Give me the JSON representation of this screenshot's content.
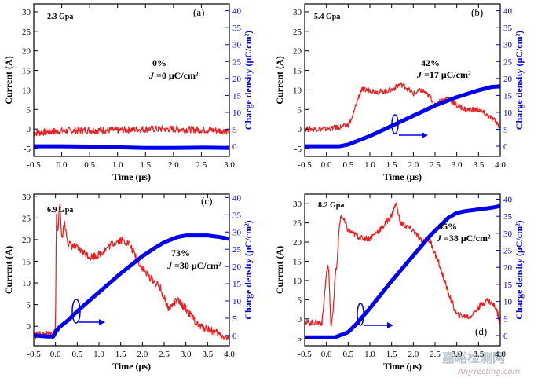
{
  "watermark": {
    "cn": "嘉峪检测网",
    "en": "AnyTesting.com"
  },
  "chart_data": [
    {
      "type": "line",
      "panel_label": "(a)",
      "pressure": "2.3 Gpa",
      "percent": "0%",
      "j_value": "=0 μC/cm²",
      "xlabel": "Time (μs)",
      "ylabel_left": "Current (A)",
      "ylabel_right": "Charge density (μC/cm²)",
      "xlim": [
        -0.5,
        3.0
      ],
      "xticks": [
        -0.5,
        0.0,
        0.5,
        1.0,
        1.5,
        2.0,
        2.5,
        3.0
      ],
      "ylim_left": [
        -7,
        32
      ],
      "yticks_left": [
        -5,
        0,
        5,
        10,
        15,
        20,
        25,
        30
      ],
      "ylim_right": [
        -3,
        42
      ],
      "yticks_right": [
        0,
        5,
        10,
        15,
        20,
        25,
        30,
        35,
        40
      ],
      "series": [
        {
          "axis": "left",
          "color": "#ee1c1c",
          "noise": 0.9,
          "x": [
            -0.5,
            0.0,
            0.5,
            1.0,
            1.5,
            2.0,
            2.5,
            3.0
          ],
          "y": [
            -1,
            -0.5,
            -0.3,
            -0.3,
            0,
            0,
            -0.2,
            -0.5
          ]
        },
        {
          "axis": "right",
          "color": "#0000ee",
          "x": [
            -0.5,
            0.0,
            0.5,
            1.0,
            1.5,
            2.0,
            2.5,
            3.0
          ],
          "y": [
            0,
            0,
            -0.1,
            -0.3,
            -0.5,
            -0.5,
            -0.4,
            -0.5
          ]
        }
      ]
    },
    {
      "type": "line",
      "panel_label": "(b)",
      "pressure": "5.4 Gpa",
      "percent": "42%",
      "j_value": "=17 μC/cm²",
      "xlabel": "Time (μs)",
      "ylabel_left": "Current (A)",
      "ylabel_right": "Charge density (μC/cm²)",
      "xlim": [
        -0.5,
        4.0
      ],
      "xticks": [
        -0.5,
        0.0,
        0.5,
        1.0,
        1.5,
        2.0,
        2.5,
        3.0,
        3.5,
        4.0
      ],
      "ylim_left": [
        -7,
        32
      ],
      "yticks_left": [
        -5,
        0,
        5,
        10,
        15,
        20,
        25,
        30
      ],
      "ylim_right": [
        -3,
        42
      ],
      "yticks_right": [
        0,
        5,
        10,
        15,
        20,
        25,
        30,
        35,
        40
      ],
      "series": [
        {
          "axis": "left",
          "color": "#ee1c1c",
          "noise": 0.7,
          "x": [
            -0.5,
            0.0,
            0.3,
            0.5,
            0.6,
            0.7,
            0.8,
            1.0,
            1.2,
            1.5,
            1.7,
            1.8,
            2.0,
            2.2,
            2.4,
            2.5,
            2.6,
            2.8,
            3.0,
            3.2,
            3.5,
            3.7,
            3.9,
            4.0
          ],
          "y": [
            0,
            0,
            0.5,
            1,
            3,
            7,
            10,
            10,
            9.5,
            10,
            11.5,
            11,
            9,
            10,
            8,
            6,
            7,
            8,
            6,
            5,
            5,
            3.5,
            2,
            0.5
          ]
        },
        {
          "axis": "right",
          "color": "#0000ee",
          "x": [
            -0.5,
            0.0,
            0.3,
            0.5,
            0.7,
            1.0,
            1.5,
            2.0,
            2.5,
            3.0,
            3.5,
            3.8,
            4.0
          ],
          "y": [
            0,
            0,
            0,
            0.5,
            1.5,
            3,
            6,
            9,
            12,
            14.5,
            16.5,
            17.5,
            17.7
          ]
        }
      ]
    },
    {
      "type": "line",
      "panel_label": "(c)",
      "pressure": "6.9 Gpa",
      "percent": "73%",
      "j_value": "=30 μC/cm²",
      "xlabel": "Time (μs)",
      "ylabel_left": "Current (A)",
      "ylabel_right": "Charge density (μC/cm²)",
      "xlim": [
        -0.5,
        4.0
      ],
      "xticks": [
        -0.5,
        0.0,
        0.5,
        1.0,
        1.5,
        2.0,
        2.5,
        3.0,
        3.5,
        4.0
      ],
      "ylim_left": [
        -4.5,
        30.5
      ],
      "yticks_left": [
        0,
        5,
        10,
        15,
        20,
        25,
        30
      ],
      "ylim_right": [
        -3,
        41
      ],
      "yticks_right": [
        0,
        5,
        10,
        15,
        20,
        25,
        30,
        35,
        40
      ],
      "series": [
        {
          "axis": "left",
          "color": "#ee1c1c",
          "noise": 0.9,
          "x": [
            -0.5,
            -0.05,
            0.0,
            0.02,
            0.05,
            0.1,
            0.15,
            0.2,
            0.3,
            0.5,
            0.8,
            1.0,
            1.3,
            1.5,
            1.7,
            1.9,
            2.1,
            2.4,
            2.6,
            2.8,
            3.0,
            3.3,
            3.5,
            3.8,
            4.0
          ],
          "y": [
            -2,
            -2,
            0,
            27,
            22,
            28,
            20,
            24,
            19,
            18,
            16,
            16.5,
            19,
            20,
            19,
            15,
            12,
            9,
            4,
            6,
            4,
            0,
            -0.5,
            -2,
            -3
          ]
        },
        {
          "axis": "right",
          "color": "#0000ee",
          "x": [
            -0.5,
            -0.2,
            -0.05,
            0.0,
            0.1,
            0.3,
            0.5,
            1.0,
            1.5,
            2.0,
            2.3,
            2.5,
            2.8,
            3.0,
            3.2,
            3.5,
            3.8,
            4.0
          ],
          "y": [
            0,
            -0.3,
            -0.3,
            1,
            2.5,
            4.5,
            7,
            12.5,
            18,
            23,
            25.5,
            27,
            28.5,
            29,
            29,
            29,
            28.5,
            28
          ]
        }
      ]
    },
    {
      "type": "line",
      "panel_label": "(d)",
      "pressure": "8.2 Gpa",
      "percent": "95%",
      "j_value": "=38 μC/cm²",
      "xlabel": "Time (μs)",
      "ylabel_left": "Current (A)",
      "ylabel_right": "Charge density (μC/cm²)",
      "xlim": [
        -0.5,
        4.0
      ],
      "xticks": [
        -0.5,
        0.0,
        0.5,
        1.0,
        1.5,
        2.0,
        2.5,
        3.0,
        3.5,
        4.0
      ],
      "ylim_left": [
        -7,
        32.5
      ],
      "yticks_left": [
        -5,
        0,
        5,
        10,
        15,
        20,
        25,
        30
      ],
      "ylim_right": [
        -3,
        41.5
      ],
      "yticks_right": [
        0,
        5,
        10,
        15,
        20,
        25,
        30,
        35,
        40
      ],
      "series": [
        {
          "axis": "left",
          "color": "#ee1c1c",
          "noise": 0.8,
          "x": [
            -0.5,
            -0.1,
            0.0,
            0.05,
            0.1,
            0.15,
            0.2,
            0.25,
            0.3,
            0.35,
            0.5,
            0.8,
            1.0,
            1.3,
            1.5,
            1.6,
            1.65,
            1.7,
            2.0,
            2.2,
            2.3,
            2.4,
            2.6,
            2.8,
            3.0,
            3.3,
            3.5,
            3.7,
            3.9,
            4.0
          ],
          "y": [
            -1,
            -1,
            12,
            14,
            -2,
            2,
            11,
            15,
            25,
            27,
            23,
            21,
            21,
            24,
            27,
            30,
            28,
            25,
            23,
            20,
            21,
            20,
            14,
            7,
            1,
            0.5,
            3,
            5,
            3,
            -1
          ]
        },
        {
          "axis": "right",
          "color": "#0000ee",
          "x": [
            -0.5,
            -0.2,
            0.2,
            0.5,
            0.7,
            1.0,
            1.5,
            2.0,
            2.4,
            2.8,
            3.0,
            3.2,
            3.5,
            3.8,
            4.0
          ],
          "y": [
            -0.5,
            -0.5,
            -0.5,
            1,
            3.5,
            8,
            16,
            23.5,
            29.5,
            34.5,
            36,
            36.5,
            37,
            37.5,
            38
          ]
        }
      ]
    }
  ]
}
